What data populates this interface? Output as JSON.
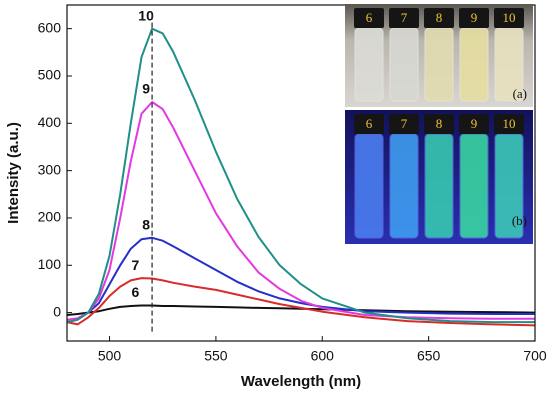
{
  "chart_data": {
    "type": "line",
    "x_label": "Wavelength (nm)",
    "y_label": "Intensity (a.u.)",
    "x": [
      480,
      485,
      490,
      495,
      500,
      505,
      510,
      515,
      520,
      525,
      530,
      540,
      550,
      560,
      570,
      580,
      590,
      600,
      620,
      640,
      660,
      680,
      700
    ],
    "series": [
      {
        "name": "6",
        "color": "#111111",
        "values": [
          -5,
          -3,
          0,
          3,
          8,
          12,
          14,
          15,
          15,
          14,
          14,
          13,
          12,
          11,
          10,
          9,
          8,
          7,
          5,
          3,
          2,
          1,
          0
        ]
      },
      {
        "name": "7",
        "color": "#d92b2b",
        "values": [
          -20,
          -25,
          -10,
          10,
          35,
          55,
          68,
          73,
          72,
          68,
          63,
          55,
          48,
          38,
          28,
          18,
          10,
          2,
          -10,
          -18,
          -22,
          -25,
          -27
        ]
      },
      {
        "name": "8",
        "color": "#2430c8",
        "values": [
          -20,
          -15,
          0,
          20,
          60,
          100,
          135,
          155,
          158,
          152,
          140,
          115,
          90,
          65,
          45,
          30,
          20,
          12,
          3,
          0,
          -2,
          -3,
          -3
        ]
      },
      {
        "name": "9",
        "color": "#e23ae0",
        "values": [
          -15,
          -12,
          0,
          30,
          90,
          200,
          320,
          420,
          445,
          430,
          390,
          300,
          210,
          140,
          85,
          50,
          25,
          10,
          -5,
          -10,
          -12,
          -13,
          -13
        ]
      },
      {
        "name": "10",
        "color": "#1f8f88",
        "values": [
          -20,
          -15,
          0,
          40,
          120,
          250,
          400,
          540,
          600,
          590,
          550,
          450,
          340,
          240,
          160,
          100,
          60,
          30,
          0,
          -12,
          -18,
          -20,
          -20
        ]
      }
    ],
    "vline_x": 520,
    "xlim": [
      480,
      700
    ],
    "xticks": [
      500,
      550,
      600,
      650,
      700
    ],
    "ylim": [
      -60,
      650
    ],
    "yticks": [
      0,
      100,
      200,
      300,
      400,
      500,
      600
    ],
    "insets": [
      {
        "label": "(a)",
        "vials": [
          "6",
          "7",
          "8",
          "9",
          "10"
        ]
      },
      {
        "label": "(b)",
        "vials": [
          "6",
          "7",
          "8",
          "9",
          "10"
        ]
      }
    ]
  }
}
